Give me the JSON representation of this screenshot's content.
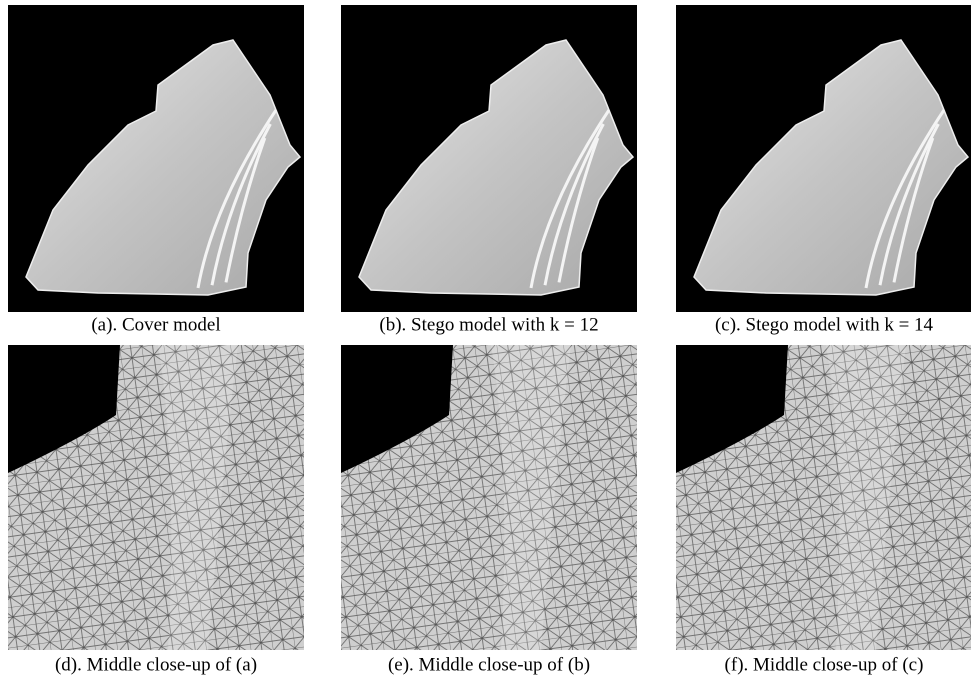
{
  "figure": {
    "panels": [
      {
        "caption": "(a). Cover model"
      },
      {
        "caption": "(b). Stego model with k = 12"
      },
      {
        "caption": "(c). Stego model with k = 14"
      },
      {
        "caption": "(d). Middle close-up of (a)"
      },
      {
        "caption": "(e). Middle close-up of (b)"
      },
      {
        "caption": "(f). Middle close-up of (c)"
      }
    ]
  }
}
